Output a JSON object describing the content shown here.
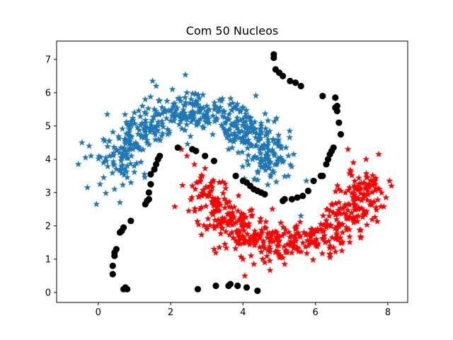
{
  "chart_data": {
    "type": "scatter",
    "title": "Com 50 Nucleos",
    "xlabel": "",
    "ylabel": "",
    "xlim": [
      -1.15,
      8.55
    ],
    "ylim": [
      -0.3,
      7.55
    ],
    "xticks": [
      0,
      2,
      4,
      6,
      8
    ],
    "yticks": [
      0,
      1,
      2,
      3,
      4,
      5,
      6,
      7
    ],
    "grid": false,
    "legend": "none",
    "series": [
      {
        "marker": "star",
        "color": "#1f77b4",
        "shape": "upper-moon",
        "approx_count": 500,
        "arc": {
          "center": [
            2.65,
            3.7
          ],
          "radius": 2.05,
          "ry": 1.7
        },
        "x": [
          -0.55,
          -0.45,
          -0.35,
          -0.3,
          -0.25,
          -0.2,
          -0.05,
          0.05,
          0.15,
          0.2,
          0.25,
          0.3,
          0.45,
          0.6,
          0.75,
          1.0,
          1.3,
          1.5,
          1.55,
          1.6,
          1.9,
          2.05,
          2.45,
          2.7,
          3.0,
          3.4,
          3.6,
          3.75,
          4.25,
          4.5,
          4.65,
          4.7,
          4.85,
          4.95,
          5.05,
          5.25,
          5.4,
          5.6,
          5.75
        ],
        "y": [
          3.85,
          4.5,
          4.05,
          3.15,
          4.4,
          4.1,
          2.65,
          3.25,
          3.45,
          3.95,
          5.35,
          4.55,
          3.1,
          2.7,
          4.6,
          5.4,
          5.8,
          6.35,
          5.5,
          6.2,
          5.75,
          6.1,
          6.0,
          5.95,
          5.6,
          5.75,
          4.3,
          5.55,
          5.05,
          5.0,
          4.8,
          4.5,
          3.6,
          3.95,
          4.4,
          3.5,
          4.15,
          2.3,
          3.35
        ]
      },
      {
        "marker": "star",
        "color": "#ff0000",
        "shape": "lower-moon",
        "approx_count": 500,
        "arc": {
          "center": [
            5.15,
            3.35
          ],
          "radius": 2.15,
          "ry": 1.85
        },
        "x": [
          2.3,
          2.45,
          2.5,
          2.6,
          2.85,
          3.0,
          3.2,
          3.5,
          3.9,
          4.0,
          4.05,
          4.3,
          4.6,
          4.75,
          5.0,
          5.15,
          5.4,
          5.8,
          6.15,
          6.3,
          6.5,
          6.7,
          6.9,
          7.05,
          7.2,
          7.4,
          7.6,
          7.75,
          7.95,
          8.05,
          8.1
        ],
        "y": [
          4.3,
          4.1,
          2.45,
          3.2,
          2.9,
          1.9,
          1.3,
          1.45,
          1.65,
          1.0,
          0.5,
          0.85,
          0.9,
          1.3,
          1.1,
          0.85,
          1.5,
          1.4,
          2.05,
          1.95,
          2.4,
          3.05,
          4.3,
          3.9,
          2.55,
          4.0,
          3.35,
          4.15,
          2.85,
          3.35,
          3.2
        ]
      },
      {
        "marker": "circle",
        "color": "#000000",
        "x": [
          0.7,
          0.75,
          0.8,
          0.4,
          0.4,
          0.45,
          0.45,
          0.5,
          0.6,
          0.65,
          0.7,
          0.9,
          1.3,
          1.35,
          1.4,
          1.4,
          1.45,
          1.45,
          1.55,
          1.6,
          1.65,
          1.7,
          2.2,
          2.6,
          2.7,
          2.95,
          3.2,
          3.8,
          4.0,
          4.1,
          4.2,
          4.3,
          4.4,
          4.5,
          4.6,
          5.1,
          5.15,
          5.35,
          5.5,
          5.65,
          5.8,
          5.95,
          6.15,
          6.2,
          6.3,
          6.35,
          6.4,
          6.45,
          6.5,
          6.55,
          6.6,
          6.65,
          6.7,
          6.6,
          6.55,
          6.2,
          5.6,
          5.45,
          5.3,
          5.1,
          5.0,
          4.9,
          4.85,
          4.85,
          2.75,
          3.25,
          3.6,
          3.65,
          3.85,
          4.1,
          4.4
        ],
        "y": [
          0.1,
          0.15,
          0.1,
          0.55,
          0.8,
          1.1,
          1.2,
          1.3,
          1.8,
          1.85,
          1.95,
          2.15,
          2.65,
          2.75,
          2.8,
          3.0,
          3.25,
          3.55,
          3.7,
          3.85,
          4.0,
          4.1,
          4.35,
          4.3,
          4.25,
          4.1,
          3.95,
          3.5,
          3.35,
          3.3,
          3.2,
          3.1,
          3.05,
          3.0,
          2.95,
          2.75,
          2.8,
          2.8,
          2.85,
          2.9,
          3.05,
          3.35,
          3.5,
          3.5,
          3.85,
          4.0,
          4.15,
          4.25,
          4.35,
          5.55,
          5.45,
          5.1,
          4.75,
          5.6,
          5.85,
          5.9,
          6.2,
          6.3,
          6.35,
          6.5,
          6.6,
          6.7,
          7.05,
          7.15,
          0.1,
          0.2,
          0.2,
          0.25,
          0.2,
          0.15,
          0.05
        ]
      }
    ]
  }
}
